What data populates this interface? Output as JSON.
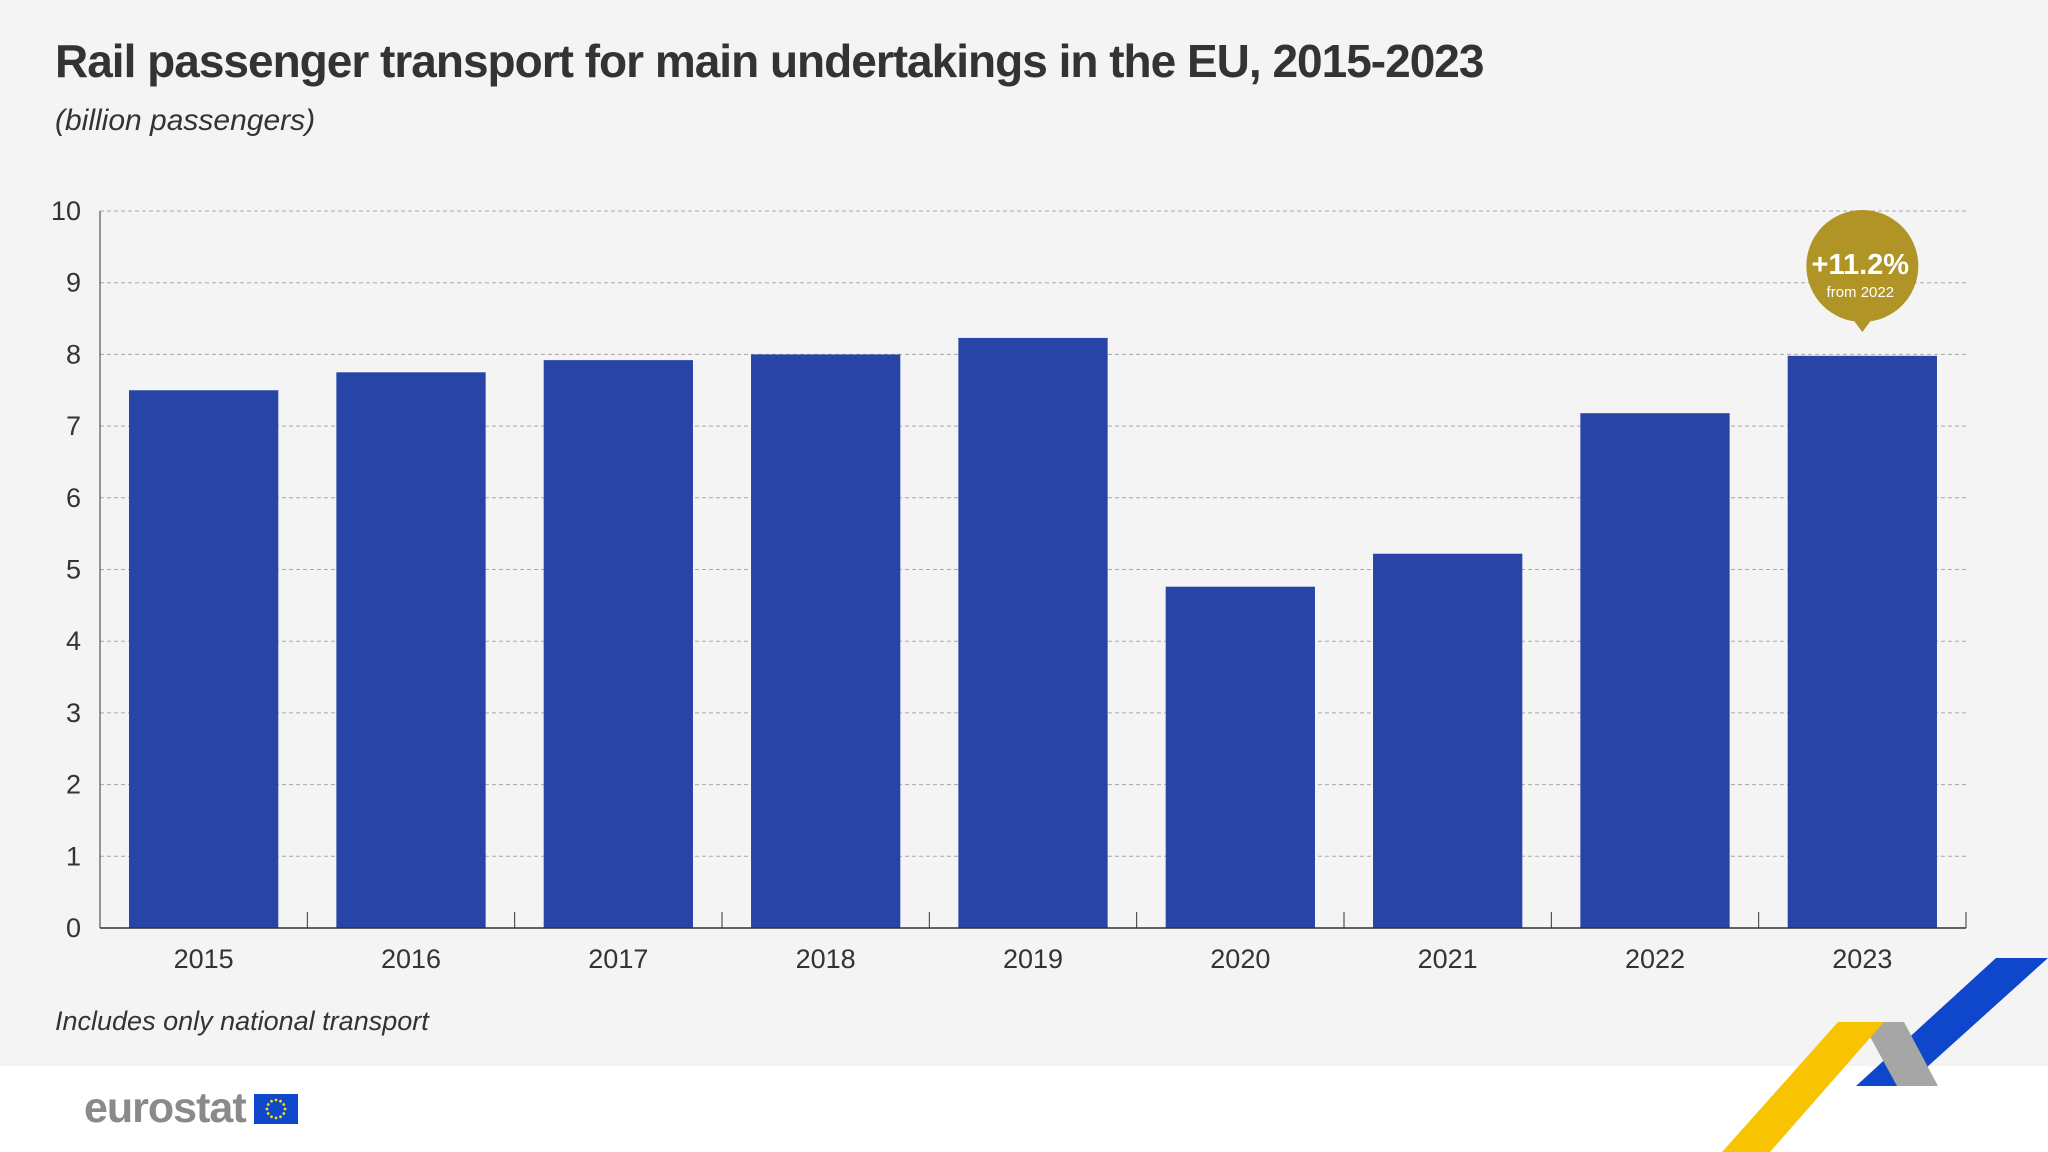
{
  "title": "Rail passenger transport for main undertakings in the EU, 2015-2023",
  "subtitle": "(billion passengers)",
  "note": "Includes only national transport",
  "logo": {
    "text": "eurostat"
  },
  "colors": {
    "bar": "#2744a6",
    "callout": "#b09425",
    "background": "#f4f4f4",
    "text": "#333333",
    "logo_text": "#8a8a8a",
    "eu_blue": "#0e47cb",
    "eu_star": "#ffdd00",
    "deco_yellow": "#f8c300",
    "deco_grey": "#a6a6a6",
    "deco_blue": "#0e47cb"
  },
  "annotation": {
    "category": "2023",
    "value_text": "+11.2%",
    "sub_text": "from 2022"
  },
  "chart_data": {
    "type": "bar",
    "title": "Rail passenger transport for main undertakings in the EU, 2015-2023",
    "subtitle": "(billion passengers)",
    "xlabel": "",
    "ylabel": "",
    "categories": [
      "2015",
      "2016",
      "2017",
      "2018",
      "2019",
      "2020",
      "2021",
      "2022",
      "2023"
    ],
    "values": [
      7.5,
      7.75,
      7.92,
      8.0,
      8.23,
      4.76,
      5.22,
      7.18,
      7.98
    ],
    "ylim": [
      0,
      10
    ],
    "yticks": [
      0,
      1,
      2,
      3,
      4,
      5,
      6,
      7,
      8,
      9,
      10
    ],
    "grid": true,
    "legend": "none"
  }
}
